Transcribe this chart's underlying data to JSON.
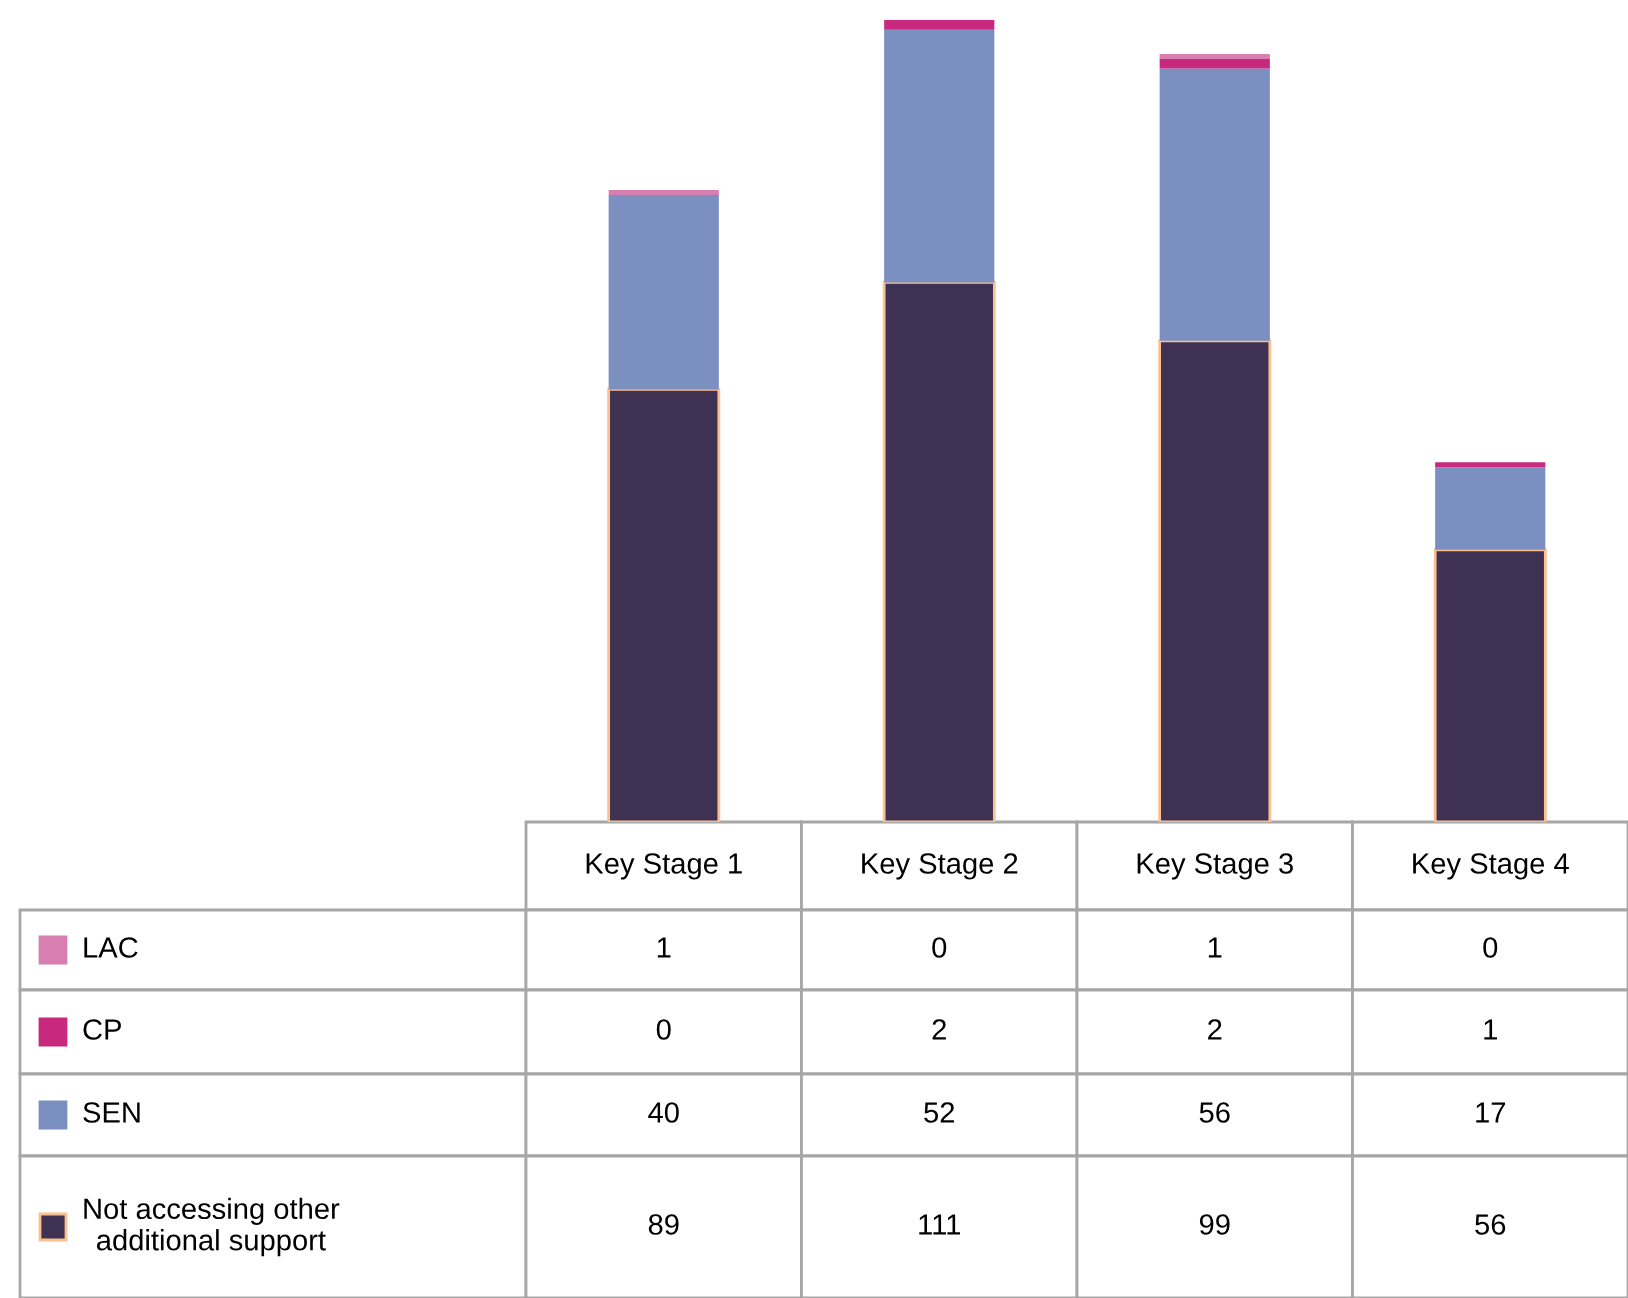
{
  "chart_data": {
    "type": "bar",
    "stacked": true,
    "data_labels": true,
    "legend": "bottom",
    "categories": [
      "Key Stage 1",
      "Key Stage 2",
      "Key Stage 3",
      "Key Stage 4"
    ],
    "series": [
      {
        "name": "Not accessing other additional support",
        "color": "#3f3151",
        "values": [
          89,
          111,
          99,
          56
        ]
      },
      {
        "name": "SEN",
        "color": "#7b8fc0",
        "values": [
          40,
          52,
          56,
          17
        ]
      },
      {
        "name": "CP",
        "color": "#c8287e",
        "values": [
          0,
          2,
          2,
          1
        ]
      },
      {
        "name": "LAC",
        "color": "#d67fb0",
        "values": [
          1,
          0,
          1,
          0
        ]
      }
    ]
  }
}
